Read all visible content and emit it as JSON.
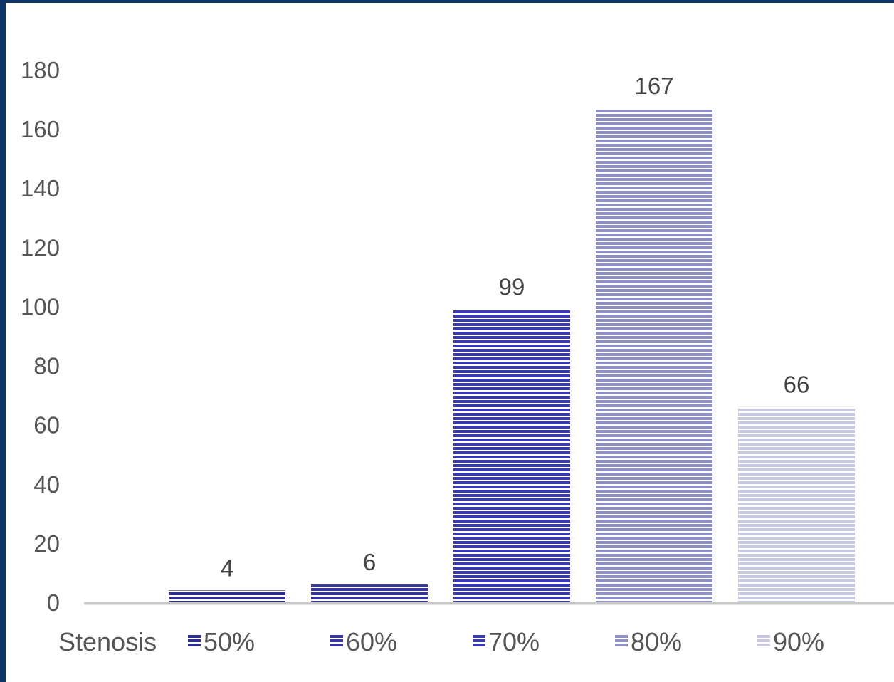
{
  "chart_data": {
    "type": "bar",
    "categories": [
      "50%",
      "60%",
      "70%",
      "80%",
      "90%"
    ],
    "values": [
      4,
      6,
      99,
      167,
      66
    ],
    "data_labels": [
      "4",
      "6",
      "99",
      "167",
      "66"
    ],
    "colors": [
      "#2e2e8e",
      "#36369c",
      "#3a3aa8",
      "#8f8fc4",
      "#c8c8e0"
    ],
    "ylim": [
      0,
      180
    ],
    "yticks": [
      0,
      20,
      40,
      60,
      80,
      100,
      120,
      140,
      160,
      180
    ],
    "legend_title": "Stenosis",
    "legend_position": "bottom",
    "grid": false,
    "pattern": "horizontal-stripes"
  }
}
